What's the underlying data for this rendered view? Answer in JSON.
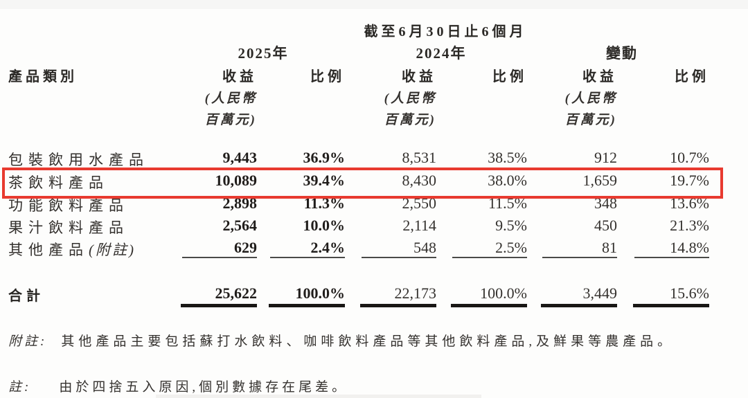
{
  "document": {
    "period_header": "截至6月30日止6個月",
    "notes": [
      {
        "label": "附註:",
        "text": "其他產品主要包括蘇打水飲料、咖啡飲料產品等其他飲料產品,及鮮果等農產品。"
      },
      {
        "label": "註:",
        "text": "由於四捨五入原因,個別數據存在尾差。"
      }
    ]
  },
  "table": {
    "category_header": "產品類別",
    "groups": [
      {
        "label": "2025年"
      },
      {
        "label": "2024年"
      },
      {
        "label": "變動"
      }
    ],
    "sub_headers": {
      "revenue": "收益",
      "ratio": "比例",
      "currency_line1": "(人民幣",
      "currency_line2": "百萬元)"
    },
    "rows": [
      {
        "label": "包裝飲用水產品",
        "suffix": "",
        "rev2025": "9,443",
        "pct2025": "36.9%",
        "rev2024": "8,531",
        "pct2024": "38.5%",
        "chg_rev": "912",
        "chg_pct": "10.7%",
        "highlighted": false
      },
      {
        "label": "茶飲料產品",
        "suffix": "",
        "rev2025": "10,089",
        "pct2025": "39.4%",
        "rev2024": "8,430",
        "pct2024": "38.0%",
        "chg_rev": "1,659",
        "chg_pct": "19.7%",
        "highlighted": true
      },
      {
        "label": "功能飲料產品",
        "suffix": "",
        "rev2025": "2,898",
        "pct2025": "11.3%",
        "rev2024": "2,550",
        "pct2024": "11.5%",
        "chg_rev": "348",
        "chg_pct": "13.6%",
        "highlighted": false
      },
      {
        "label": "果汁飲料產品",
        "suffix": "",
        "rev2025": "2,564",
        "pct2025": "10.0%",
        "rev2024": "2,114",
        "pct2024": "9.5%",
        "chg_rev": "450",
        "chg_pct": "21.3%",
        "highlighted": false
      },
      {
        "label": "其他產品",
        "suffix": "(附註)",
        "rev2025": "629",
        "pct2025": "2.4%",
        "rev2024": "548",
        "pct2024": "2.5%",
        "chg_rev": "81",
        "chg_pct": "14.8%",
        "highlighted": false
      }
    ],
    "total": {
      "label": "合計",
      "rev2025": "25,622",
      "pct2025": "100.0%",
      "rev2024": "22,173",
      "pct2024": "100.0%",
      "chg_rev": "3,449",
      "chg_pct": "15.6%"
    },
    "highlight_color": "#e83a2f"
  }
}
